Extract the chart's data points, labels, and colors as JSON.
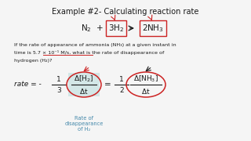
{
  "title": "Example #2- Calculating reaction rate",
  "bg_color": "#f5f5f5",
  "text_color": "#1a1a1a",
  "box_edge_color": "#cc2222",
  "arrow_color": "#333333",
  "red_arrow_color": "#cc2222",
  "circle_H2_fill": "#b8dcdc",
  "circle_NH3_fill": "none",
  "circle_edge_color": "#cc2222",
  "annotation_color": "#4488aa",
  "underline_color": "#cc2222",
  "problem_line1": "If the rate of appearance of ammonia (NH₃) at a given instant in",
  "problem_line2": "time is 5.7 × 10⁻¹ M/s, what is the rate of disappearance of",
  "problem_line3": "hydrogen (H₂)?",
  "annotation": "Rate of\ndisappearance\nof H₂",
  "title_fs": 7.0,
  "rxn_fs": 7.5,
  "body_fs": 4.6,
  "eq_fs": 6.5
}
